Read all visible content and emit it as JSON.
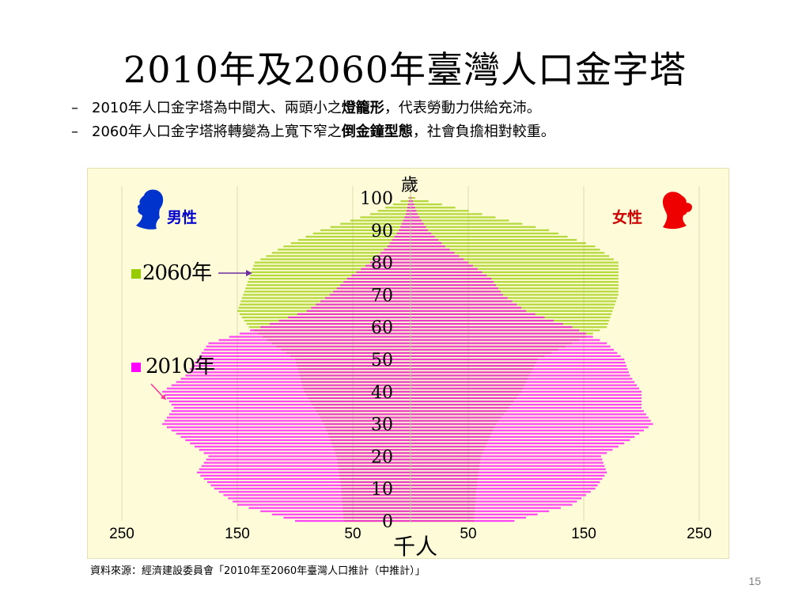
{
  "slide": {
    "title": "2010年及2060年臺灣人口金字塔",
    "bullets": [
      {
        "dash": "–",
        "prefix": "2010年人口金字塔為中間大、兩頭小之",
        "bold": "燈籠形",
        "suffix": "，代表勞動力供給充沛。"
      },
      {
        "dash": "–",
        "prefix": "2060年人口金字塔將轉變為上寬下窄之",
        "bold": "倒金鐘型態",
        "suffix": "，社會負擔相對較重。"
      }
    ],
    "source": "資料來源：經濟建設委員會「2010年至2060年臺灣人口推計（中推計）」",
    "page_number": "15"
  },
  "chart_data": {
    "type": "bar",
    "orientation": "horizontal-back-to-back",
    "ylabel": "歲",
    "xlabel": "千人",
    "male_label": "男性",
    "female_label": "女性",
    "y_ticks": [
      "0",
      "10",
      "20",
      "30",
      "40",
      "50",
      "60",
      "70",
      "80",
      "90",
      "100"
    ],
    "x_ticks_left": [
      "250",
      "150",
      "50"
    ],
    "x_ticks_right": [
      "50",
      "150",
      "250"
    ],
    "ylim": [
      0,
      100
    ],
    "xlim": [
      -250,
      250
    ],
    "series": [
      {
        "name": "2060年",
        "color": "#99cc00",
        "ages": [
          0,
          10,
          20,
          30,
          40,
          50,
          60,
          65,
          70,
          75,
          80,
          85,
          90,
          95,
          100
        ],
        "male": [
          58,
          60,
          64,
          75,
          92,
          100,
          140,
          150,
          145,
          140,
          135,
          110,
          78,
          35,
          2
        ],
        "female": [
          55,
          57,
          61,
          74,
          96,
          110,
          170,
          175,
          180,
          180,
          180,
          160,
          120,
          62,
          4
        ]
      },
      {
        "name": "2010年",
        "color": "#ff00ff",
        "ages": [
          0,
          5,
          10,
          15,
          20,
          25,
          30,
          35,
          40,
          45,
          50,
          55,
          60,
          65,
          70,
          75,
          80,
          85,
          90,
          95,
          100
        ],
        "male": [
          100,
          150,
          170,
          185,
          175,
          195,
          215,
          205,
          215,
          195,
          185,
          175,
          130,
          90,
          70,
          55,
          35,
          20,
          10,
          4,
          1
        ],
        "female": [
          90,
          140,
          160,
          170,
          165,
          190,
          210,
          200,
          200,
          190,
          185,
          170,
          140,
          100,
          80,
          70,
          50,
          30,
          15,
          6,
          1
        ]
      }
    ],
    "legend": [
      {
        "label": "2060年",
        "color": "#99cc00",
        "position": "left"
      },
      {
        "label": "2010年",
        "color": "#ff00ff",
        "position": "left"
      }
    ]
  }
}
